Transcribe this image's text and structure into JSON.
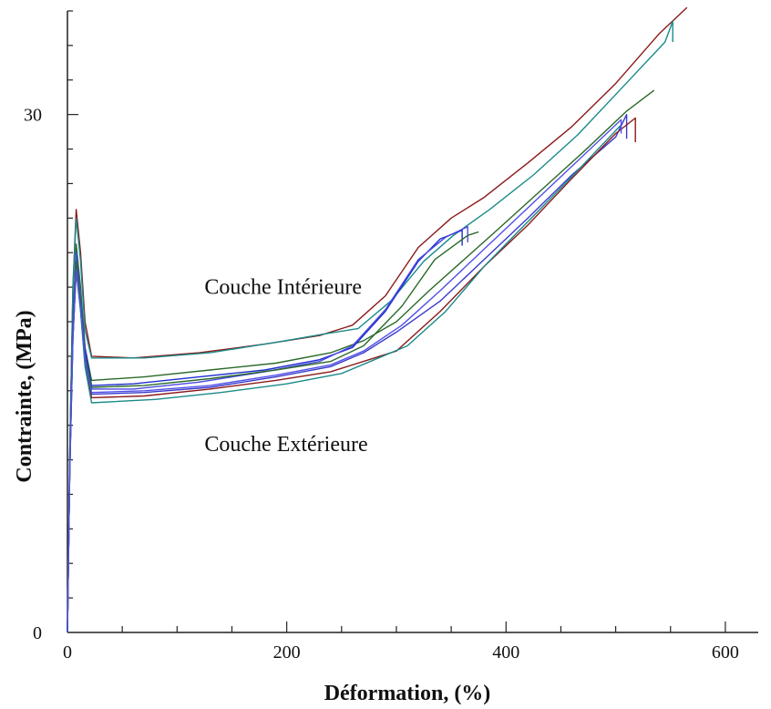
{
  "chart_data": {
    "type": "line",
    "title": "",
    "xlabel": "Déformation, (%)",
    "ylabel": "Contrainte, (MPa)",
    "xlim": [
      0,
      630
    ],
    "ylim": [
      0,
      36
    ],
    "xticks": [
      0,
      200,
      400,
      600
    ],
    "xtick_labels": [
      "0",
      "200",
      "400",
      "600"
    ],
    "yticks": [
      0,
      30
    ],
    "ytick_labels": [
      "0",
      "30"
    ],
    "grid": false,
    "annotations": [
      {
        "text": "Couche Intérieure",
        "x": 125,
        "y": 19.6
      },
      {
        "text": "Couche Extérieure",
        "x": 125,
        "y": 10.5
      }
    ],
    "series": [
      {
        "color": "#8b1a1a",
        "x": [
          0,
          2,
          5,
          8,
          12,
          16,
          22,
          60,
          120,
          180,
          230,
          260,
          290,
          320,
          350,
          380,
          420,
          460,
          500,
          540,
          565
        ],
        "y": [
          0,
          10,
          20,
          24.5,
          22,
          18,
          16,
          15.9,
          16.2,
          16.7,
          17.2,
          17.8,
          19.5,
          22.3,
          24,
          25.2,
          27.2,
          29.3,
          31.8,
          34.7,
          36.2
        ]
      },
      {
        "color": "#1a8a8a",
        "x": [
          0,
          2,
          5,
          8,
          12,
          16,
          22,
          70,
          130,
          190,
          235,
          265,
          295,
          325,
          352,
          385,
          425,
          465,
          505,
          545,
          552,
          552
        ],
        "y": [
          0,
          10,
          20,
          24,
          21.5,
          17.5,
          15.9,
          15.9,
          16.2,
          16.8,
          17.3,
          17.6,
          19.2,
          21.5,
          23,
          24.5,
          26.5,
          28.8,
          31.5,
          34.2,
          35.4,
          34.2
        ]
      },
      {
        "color": "#2a6a2a",
        "x": [
          0,
          2,
          5,
          8,
          12,
          16,
          22,
          70,
          130,
          190,
          240,
          270,
          300,
          330,
          360,
          390,
          430,
          470,
          510,
          535
        ],
        "y": [
          0,
          9,
          18,
          22.5,
          20,
          16.5,
          14.6,
          14.8,
          15.2,
          15.6,
          16.2,
          16.9,
          18,
          19.8,
          21.5,
          23.2,
          25.5,
          27.8,
          30.2,
          31.4
        ]
      },
      {
        "color": "#1f2fd0",
        "x": [
          0,
          2,
          5,
          8,
          12,
          16,
          22,
          60,
          120,
          180,
          230,
          260,
          290,
          320,
          340,
          360,
          360
        ],
        "y": [
          0,
          9,
          18,
          21.5,
          19.5,
          16.5,
          14.3,
          14.4,
          14.8,
          15.2,
          15.8,
          16.5,
          18.6,
          21.5,
          22.8,
          23.3,
          22.4
        ]
      },
      {
        "color": "#3a3acc",
        "x": [
          0,
          2,
          5,
          8,
          12,
          16,
          22,
          70,
          130,
          190,
          240,
          270,
          300,
          340,
          380,
          420,
          460,
          500,
          510,
          510
        ],
        "y": [
          0,
          9,
          18,
          22,
          19.5,
          16.2,
          13.8,
          13.9,
          14.2,
          14.8,
          15.4,
          16.2,
          17.4,
          19.2,
          21.6,
          24,
          26.5,
          28.7,
          30,
          28.6
        ]
      },
      {
        "color": "#4a4ae0",
        "x": [
          0,
          2,
          5,
          8,
          12,
          16,
          22,
          60,
          120,
          180,
          230,
          260,
          290,
          320,
          345,
          365,
          365
        ],
        "y": [
          0,
          9,
          18,
          22,
          19.6,
          16,
          14.1,
          14.1,
          14.5,
          15.1,
          15.7,
          16.6,
          18.7,
          21.6,
          22.9,
          23.5,
          22.6
        ]
      },
      {
        "color": "#8b1a1a",
        "x": [
          0,
          2,
          5,
          8,
          12,
          16,
          22,
          70,
          130,
          190,
          240,
          270,
          300,
          340,
          380,
          420,
          460,
          500,
          518,
          518
        ],
        "y": [
          0,
          9,
          17,
          21,
          18.7,
          15.6,
          13.6,
          13.7,
          14.1,
          14.6,
          15.1,
          15.7,
          16.3,
          18.6,
          21.2,
          23.6,
          26.3,
          28.9,
          29.8,
          28.4
        ]
      },
      {
        "color": "#1a8a8a",
        "x": [
          0,
          2,
          5,
          8,
          12,
          16,
          22,
          80,
          140,
          200,
          250,
          280,
          310,
          345,
          380,
          420,
          460,
          505
        ],
        "y": [
          0,
          9,
          17,
          21,
          18.6,
          15.4,
          13.3,
          13.5,
          13.9,
          14.4,
          15,
          15.8,
          16.6,
          18.6,
          21.2,
          23.8,
          26.4,
          29.4
        ]
      },
      {
        "color": "#2a6a2a",
        "x": [
          0,
          2,
          5,
          8,
          12,
          16,
          22,
          70,
          130,
          190,
          240,
          270,
          305,
          335,
          365,
          375
        ],
        "y": [
          0,
          9,
          17.5,
          21.5,
          19.2,
          16,
          14.2,
          14.3,
          14.7,
          15.2,
          15.7,
          16.6,
          18.9,
          21.6,
          23,
          23.2
        ]
      },
      {
        "color": "#5050e8",
        "x": [
          0,
          2,
          5,
          8,
          12,
          16,
          22,
          70,
          130,
          190,
          240,
          270,
          305,
          340,
          380,
          420,
          460,
          505,
          505
        ],
        "y": [
          0,
          9,
          17,
          21,
          18.8,
          15.8,
          13.9,
          14,
          14.3,
          14.9,
          15.5,
          16.3,
          17.8,
          19.8,
          22.2,
          24.6,
          27,
          29.7,
          28.9
        ]
      }
    ]
  }
}
